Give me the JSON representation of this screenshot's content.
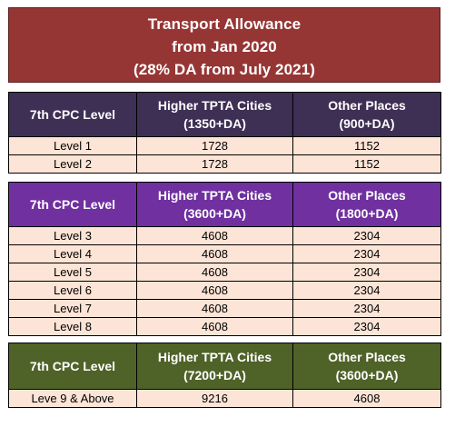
{
  "title": {
    "line1": "Transport Allowance",
    "line2": "from Jan 2020",
    "line3": "(28% DA from July 2021)"
  },
  "tables": [
    {
      "header": {
        "col1": "7th CPC Level",
        "col2_line1": "Higher TPTA Cities",
        "col2_line2": "(1350+DA)",
        "col3_line1": "Other Places",
        "col3_line2": "(900+DA)"
      },
      "header_color": "#3e2f55",
      "rows": [
        {
          "level": "Level 1",
          "higher": "1728",
          "other": "1152"
        },
        {
          "level": "Level 2",
          "higher": "1728",
          "other": "1152"
        }
      ]
    },
    {
      "header": {
        "col1": "7th CPC Level",
        "col2_line1": "Higher TPTA Cities",
        "col2_line2": "(3600+DA)",
        "col3_line1": "Other Places",
        "col3_line2": "(1800+DA)"
      },
      "header_color": "#7030a0",
      "rows": [
        {
          "level": "Level 3",
          "higher": "4608",
          "other": "2304"
        },
        {
          "level": "Level 4",
          "higher": "4608",
          "other": "2304"
        },
        {
          "level": "Level 5",
          "higher": "4608",
          "other": "2304"
        },
        {
          "level": "Level 6",
          "higher": "4608",
          "other": "2304"
        },
        {
          "level": "Level 7",
          "higher": "4608",
          "other": "2304"
        },
        {
          "level": "Level 8",
          "higher": "4608",
          "other": "2304"
        }
      ]
    },
    {
      "header": {
        "col1": "7th CPC Level",
        "col2_line1": "Higher TPTA Cities",
        "col2_line2": "(7200+DA)",
        "col3_line1": "Other Places",
        "col3_line2": "(3600+DA)"
      },
      "header_color": "#4f6228",
      "rows": [
        {
          "level": "Leve 9 & Above",
          "higher": "9216",
          "other": "4608"
        }
      ]
    }
  ],
  "colors": {
    "title_bg": "#963634",
    "row_bg": "#fce4d6"
  }
}
